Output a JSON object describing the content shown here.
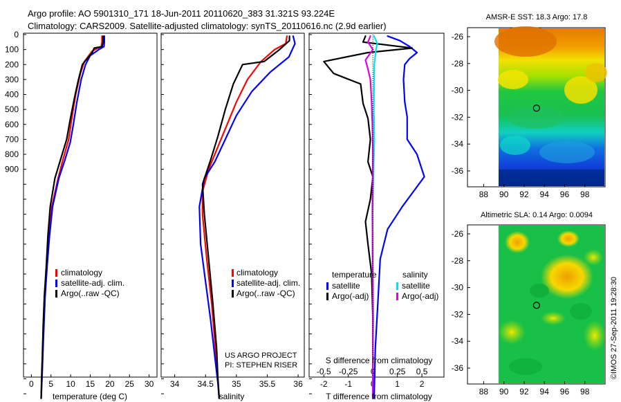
{
  "header": {
    "line1": "Argo profile: AO 5901310_171 18-Jun-2011 20110620_383 31.321S 93.224E",
    "line2": "Climatology: CARS2009. Satellite-adjusted climatology: synTS_20110616.nc (2.9d earlier)"
  },
  "colors": {
    "climatology": "#ff0000",
    "satellite": "#0000ff",
    "argo": "#000000",
    "satellite_s": "#00e5ee",
    "argo_s": "#e000e0"
  },
  "depth_axis": {
    "ticks": [
      "0",
      "100",
      "200",
      "300",
      "400",
      "500",
      "600",
      "700",
      "800",
      "900"
    ]
  },
  "chart_data": [
    {
      "id": "temperature",
      "type": "line",
      "xlabel": "temperature (deg C)",
      "xlim": [
        -2,
        32
      ],
      "xticks": [
        "0",
        "5",
        "10",
        "15",
        "20",
        "25",
        "30"
      ],
      "legend": [
        "climatology",
        "satellite-adj. clim.",
        "Argo(..raw -QC)"
      ],
      "series": [
        {
          "name": "climatology",
          "color": "climatology",
          "points": [
            [
              18.0,
              10
            ],
            [
              18.0,
              50
            ],
            [
              17.8,
              80
            ],
            [
              15.5,
              110
            ],
            [
              13.5,
              180
            ],
            [
              12.5,
              260
            ],
            [
              11.3,
              400
            ],
            [
              10.3,
              560
            ],
            [
              9.5,
              700
            ],
            [
              8.0,
              840
            ],
            [
              6.8,
              960
            ],
            [
              5.2,
              1150
            ],
            [
              4.4,
              1350
            ],
            [
              3.9,
              1550
            ],
            [
              3.4,
              1750
            ],
            [
              3.1,
              1950
            ],
            [
              2.9,
              2150
            ],
            [
              2.7,
              2300
            ],
            [
              2.5,
              2430
            ]
          ]
        },
        {
          "name": "satellite-adj. clim.",
          "color": "satellite",
          "points": [
            [
              18.6,
              10
            ],
            [
              18.6,
              50
            ],
            [
              18.5,
              80
            ],
            [
              17.2,
              100
            ],
            [
              15.0,
              140
            ],
            [
              13.8,
              200
            ],
            [
              12.7,
              300
            ],
            [
              11.6,
              450
            ],
            [
              10.7,
              600
            ],
            [
              9.9,
              720
            ],
            [
              8.4,
              850
            ],
            [
              7.0,
              960
            ],
            [
              5.4,
              1150
            ],
            [
              4.6,
              1350
            ],
            [
              4.0,
              1550
            ],
            [
              3.5,
              1750
            ],
            [
              3.2,
              1950
            ],
            [
              2.9,
              2150
            ],
            [
              2.7,
              2300
            ],
            [
              2.5,
              2430
            ]
          ]
        },
        {
          "name": "Argo(..raw -QC)",
          "color": "argo",
          "points": [
            [
              18.3,
              10
            ],
            [
              18.3,
              50
            ],
            [
              18.0,
              80
            ],
            [
              16.0,
              90
            ],
            [
              15.5,
              120
            ],
            [
              13.0,
              200
            ],
            [
              12.0,
              300
            ],
            [
              11.0,
              420
            ],
            [
              9.8,
              580
            ],
            [
              9.0,
              700
            ],
            [
              7.5,
              830
            ],
            [
              6.0,
              960
            ],
            [
              4.8,
              1150
            ],
            [
              4.2,
              1350
            ],
            [
              3.8,
              1550
            ],
            [
              3.3,
              1750
            ],
            [
              3.0,
              1950
            ],
            [
              2.8,
              2150
            ],
            [
              2.6,
              2300
            ],
            [
              2.5,
              2430
            ]
          ]
        }
      ]
    },
    {
      "id": "salinity",
      "type": "line",
      "xlabel": "salinity",
      "xlim": [
        33.78,
        36.1
      ],
      "xticks": [
        "34",
        "34.5",
        "35",
        "35.5",
        "36"
      ],
      "legend": [
        "climatology",
        "satellite-adj. clim.",
        "Argo(..raw -QC)"
      ],
      "series": [
        {
          "name": "climatology",
          "color": "climatology",
          "points": [
            [
              35.82,
              10
            ],
            [
              35.8,
              60
            ],
            [
              35.62,
              100
            ],
            [
              35.4,
              180
            ],
            [
              35.18,
              300
            ],
            [
              35.0,
              450
            ],
            [
              34.85,
              600
            ],
            [
              34.7,
              750
            ],
            [
              34.55,
              900
            ],
            [
              34.45,
              1050
            ],
            [
              34.45,
              1200
            ],
            [
              34.52,
              1500
            ],
            [
              34.6,
              1800
            ],
            [
              34.66,
              2100
            ],
            [
              34.7,
              2300
            ],
            [
              34.72,
              2430
            ]
          ]
        },
        {
          "name": "satellite-adj. clim.",
          "color": "satellite",
          "points": [
            [
              35.92,
              10
            ],
            [
              35.95,
              60
            ],
            [
              35.85,
              150
            ],
            [
              35.55,
              250
            ],
            [
              35.25,
              380
            ],
            [
              35.0,
              540
            ],
            [
              34.82,
              700
            ],
            [
              34.65,
              850
            ],
            [
              34.48,
              960
            ],
            [
              34.4,
              1150
            ],
            [
              34.42,
              1400
            ],
            [
              34.5,
              1650
            ],
            [
              34.58,
              1900
            ],
            [
              34.65,
              2150
            ],
            [
              34.7,
              2330
            ],
            [
              34.72,
              2430
            ]
          ]
        },
        {
          "name": "Argo(..raw -QC)",
          "color": "argo",
          "points": [
            [
              35.86,
              10
            ],
            [
              35.86,
              40
            ],
            [
              35.7,
              100
            ],
            [
              35.45,
              180
            ],
            [
              35.1,
              200
            ],
            [
              34.95,
              330
            ],
            [
              34.82,
              500
            ],
            [
              34.7,
              680
            ],
            [
              34.58,
              840
            ],
            [
              34.45,
              1000
            ],
            [
              34.48,
              1200
            ],
            [
              34.55,
              1500
            ],
            [
              34.62,
              1800
            ],
            [
              34.68,
              2100
            ],
            [
              34.7,
              2300
            ],
            [
              34.72,
              2430
            ]
          ]
        }
      ]
    },
    {
      "id": "difference",
      "type": "line",
      "xlabel": "T difference from climatology",
      "xlabel_top": "S difference from climatology",
      "xlim": [
        -2.6,
        2.9
      ],
      "xticks": [
        "-2",
        "-1",
        "0",
        "1",
        "2"
      ],
      "xticks_s": [
        "-0.5",
        "-0.25",
        "0",
        "0.25",
        "0.5"
      ],
      "legend_title_t": "temperature",
      "legend_title_s": "salinity",
      "legend_t": [
        "satellite",
        "Argo(-adj)"
      ],
      "legend_s": [
        "satellite",
        "Argo(-adj)"
      ],
      "series": [
        {
          "name": "T satellite",
          "color": "satellite",
          "points": [
            [
              0.6,
              10
            ],
            [
              1.1,
              40
            ],
            [
              1.5,
              80
            ],
            [
              1.8,
              120
            ],
            [
              1.5,
              160
            ],
            [
              1.3,
              200
            ],
            [
              1.25,
              300
            ],
            [
              1.3,
              450
            ],
            [
              1.4,
              550
            ],
            [
              1.4,
              700
            ],
            [
              1.8,
              800
            ],
            [
              2.1,
              950
            ],
            [
              1.2,
              1150
            ],
            [
              0.6,
              1300
            ],
            [
              0.3,
              1500
            ],
            [
              0.2,
              1800
            ],
            [
              0.1,
              2100
            ],
            [
              0.05,
              2430
            ]
          ]
        },
        {
          "name": "T Argo(-adj)",
          "color": "argo",
          "points": [
            [
              -0.3,
              10
            ],
            [
              -0.4,
              50
            ],
            [
              1.6,
              90
            ],
            [
              -0.2,
              120
            ],
            [
              -2.0,
              180
            ],
            [
              -1.6,
              260
            ],
            [
              -0.5,
              330
            ],
            [
              -0.4,
              460
            ],
            [
              -0.2,
              560
            ],
            [
              -0.1,
              700
            ],
            [
              -0.2,
              850
            ],
            [
              0.0,
              950
            ],
            [
              -0.1,
              1100
            ],
            [
              -0.3,
              1250
            ],
            [
              -0.2,
              1400
            ],
            [
              -0.05,
              1600
            ],
            [
              0.0,
              1900
            ],
            [
              0.0,
              2430
            ]
          ]
        },
        {
          "name": "S satellite",
          "color": "satellite_s",
          "points": [
            [
              0.05,
              10
            ],
            [
              0.18,
              60
            ],
            [
              0.12,
              110
            ],
            [
              0.06,
              200
            ],
            [
              0.05,
              300
            ],
            [
              0.04,
              500
            ],
            [
              0.06,
              700
            ],
            [
              0.03,
              900
            ],
            [
              0.0,
              1100
            ],
            [
              -0.02,
              1400
            ],
            [
              -0.01,
              1600
            ],
            [
              0.02,
              1900
            ],
            [
              0.0,
              2100
            ],
            [
              -0.01,
              2430
            ]
          ]
        },
        {
          "name": "S Argo(-adj)",
          "color": "argo_s",
          "points": [
            [
              -0.1,
              10
            ],
            [
              -0.2,
              50
            ],
            [
              0.0,
              100
            ],
            [
              -0.3,
              170
            ],
            [
              -0.2,
              230
            ],
            [
              -0.1,
              300
            ],
            [
              -0.05,
              450
            ],
            [
              -0.02,
              600
            ],
            [
              0.0,
              800
            ],
            [
              -0.01,
              1000
            ],
            [
              -0.02,
              1200
            ],
            [
              -0.01,
              1400
            ],
            [
              0.0,
              1700
            ],
            [
              0.0,
              2000
            ],
            [
              0.0,
              2430
            ]
          ]
        }
      ]
    }
  ],
  "notes": {
    "project": "US ARGO PROJECT",
    "pi": "PI: STEPHEN RISER"
  },
  "maps": [
    {
      "id": "sst",
      "title": "AMSR-E SST: 18.3 Argo: 17.8",
      "lon_ticks": [
        "88",
        "90",
        "92",
        "94",
        "96",
        "98"
      ],
      "lat_ticks": [
        "-26",
        "-28",
        "-30",
        "-32",
        "-34",
        "-36"
      ],
      "marker": {
        "lon": 93.224,
        "lat": -31.321
      }
    },
    {
      "id": "sla",
      "title": "Altimetric SLA: 0.14 Argo: 0.0094",
      "lon_ticks": [
        "88",
        "90",
        "92",
        "94",
        "96",
        "98"
      ],
      "lat_ticks": [
        "-26",
        "-28",
        "-30",
        "-32",
        "-34",
        "-36"
      ],
      "marker": {
        "lon": 93.224,
        "lat": -31.321
      }
    }
  ],
  "footer_stamp": "©IMOS 27-Sep-2011 19:28:30"
}
